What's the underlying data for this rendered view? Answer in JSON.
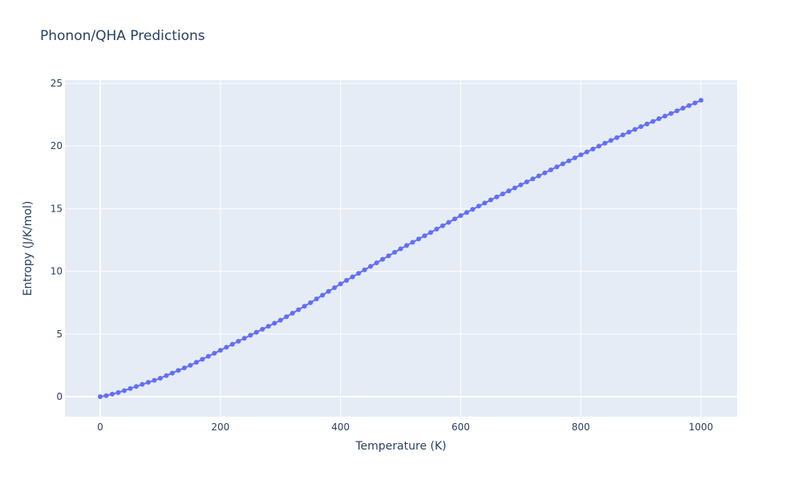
{
  "chart_data": {
    "type": "line",
    "title": "Phonon/QHA Predictions",
    "x_label": "Temperature (K)",
    "y_label": "Entropy (J/K/mol)",
    "x": [
      0,
      10,
      20,
      30,
      40,
      50,
      60,
      70,
      80,
      90,
      100,
      110,
      120,
      130,
      140,
      150,
      160,
      170,
      180,
      190,
      200,
      210,
      220,
      230,
      240,
      250,
      260,
      270,
      280,
      290,
      300,
      310,
      320,
      330,
      340,
      350,
      360,
      370,
      380,
      390,
      400,
      410,
      420,
      430,
      440,
      450,
      460,
      470,
      480,
      490,
      500,
      510,
      520,
      530,
      540,
      550,
      560,
      570,
      580,
      590,
      600,
      610,
      620,
      630,
      640,
      650,
      660,
      670,
      680,
      690,
      700,
      710,
      720,
      730,
      740,
      750,
      760,
      770,
      780,
      790,
      800,
      810,
      820,
      830,
      840,
      850,
      860,
      870,
      880,
      890,
      900,
      910,
      920,
      930,
      940,
      950,
      960,
      970,
      980,
      990,
      1000
    ],
    "series": [
      {
        "color": "#636efa",
        "values": [
          0,
          0.08,
          0.2,
          0.33,
          0.48,
          0.65,
          0.81,
          0.98,
          1.14,
          1.3,
          1.47,
          1.68,
          1.88,
          2.09,
          2.29,
          2.5,
          2.74,
          2.98,
          3.22,
          3.46,
          3.7,
          3.94,
          4.18,
          4.42,
          4.66,
          4.9,
          5.14,
          5.38,
          5.62,
          5.86,
          6.1,
          6.38,
          6.66,
          6.94,
          7.22,
          7.5,
          7.8,
          8.1,
          8.4,
          8.7,
          9.0,
          9.28,
          9.56,
          9.84,
          10.12,
          10.4,
          10.68,
          10.96,
          11.24,
          11.52,
          11.8,
          12.06,
          12.32,
          12.58,
          12.84,
          13.1,
          13.37,
          13.64,
          13.91,
          14.18,
          14.45,
          14.7,
          14.95,
          15.2,
          15.45,
          15.7,
          15.94,
          16.18,
          16.42,
          16.66,
          16.9,
          17.14,
          17.38,
          17.62,
          17.86,
          18.1,
          18.34,
          18.58,
          18.82,
          19.06,
          19.3,
          19.53,
          19.76,
          19.99,
          20.22,
          20.45,
          20.67,
          20.89,
          21.11,
          21.33,
          21.55,
          21.76,
          21.97,
          22.18,
          22.39,
          22.6,
          22.81,
          23.02,
          23.23,
          23.44,
          23.65
        ]
      }
    ],
    "xlim": [
      -58.7,
      1060
    ],
    "ylim": [
      -1.6,
      25.26
    ],
    "xticks": [
      0,
      200,
      400,
      600,
      800,
      1000
    ],
    "yticks": [
      0,
      5,
      10,
      15,
      20,
      25
    ],
    "grid": true
  }
}
